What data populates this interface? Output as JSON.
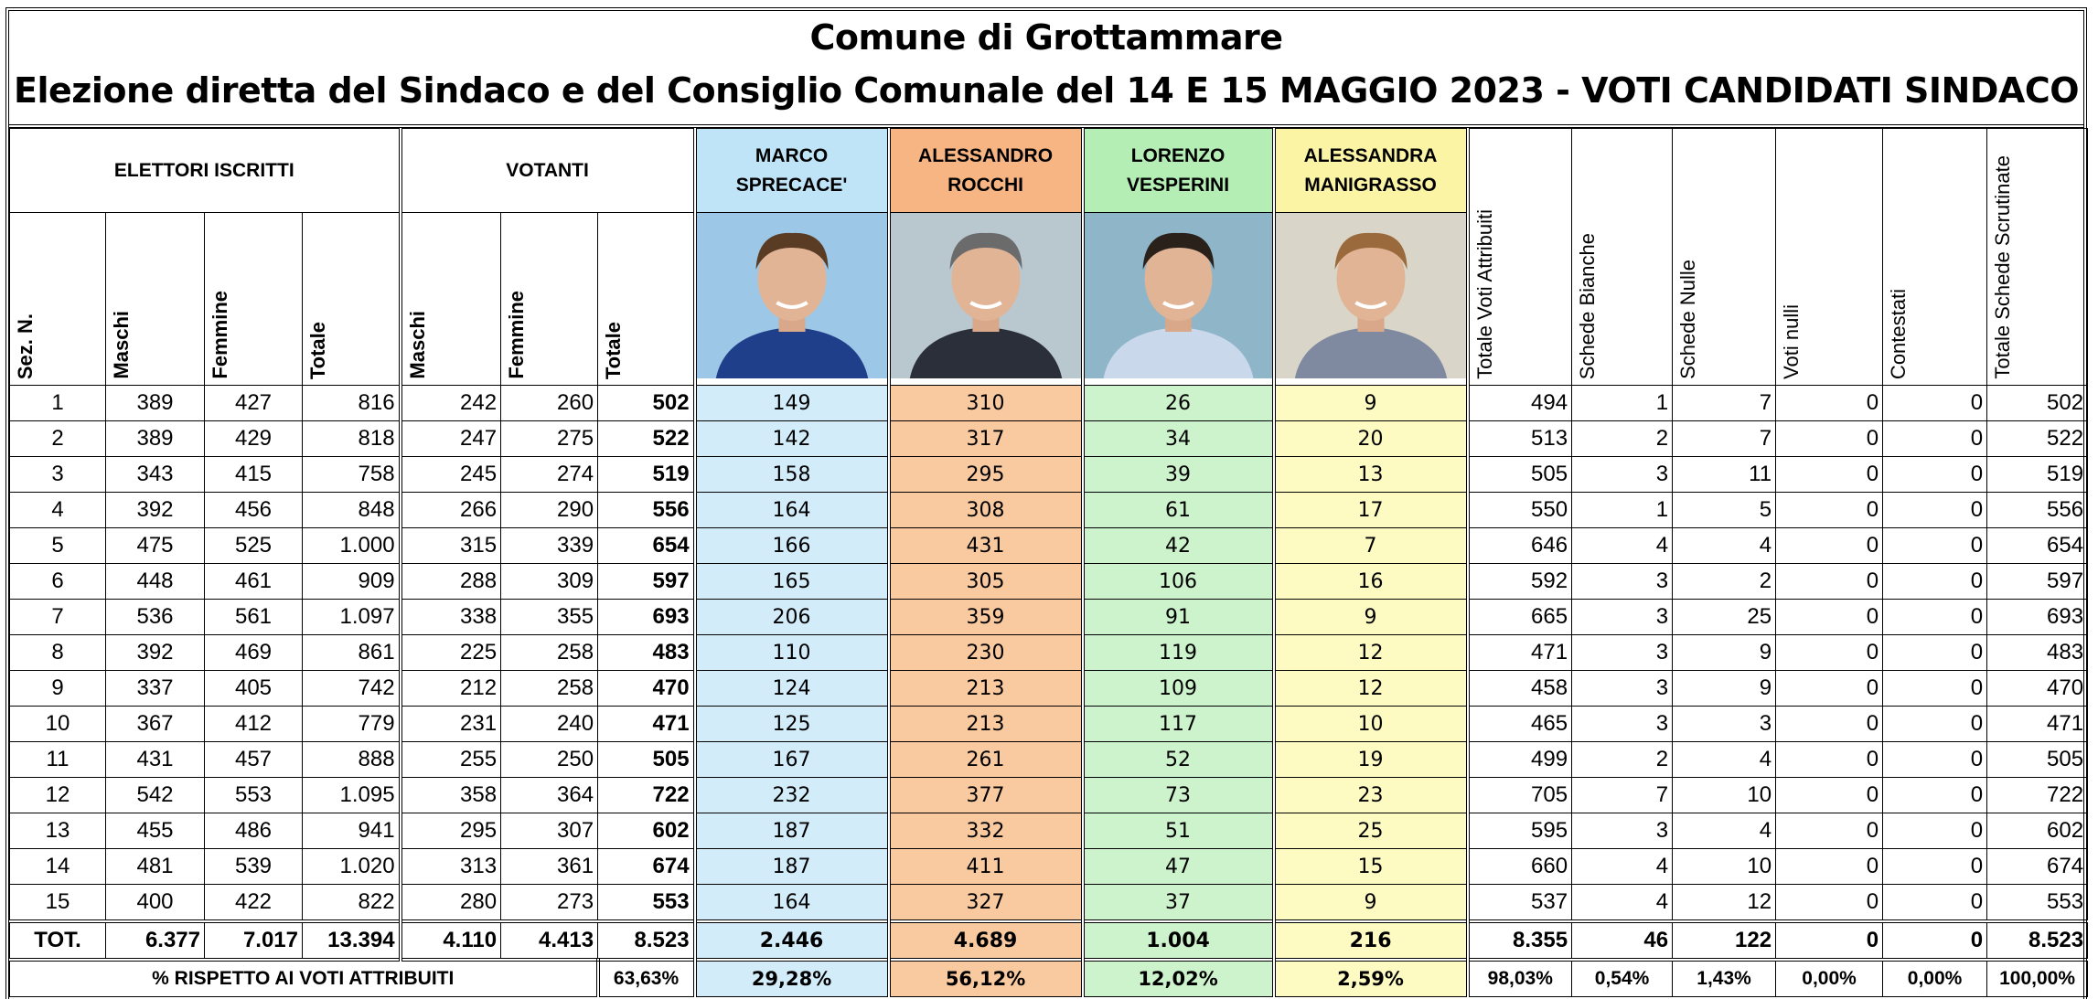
{
  "title": [
    "Comune di Grottammare",
    "Elezione diretta del Sindaco e del Consiglio Comunale del 14 E 15 MAGGIO 2023 - VOTI CANDIDATI SINDACO"
  ],
  "header": {
    "elettori_iscritti": "ELETTORI ISCRITTI",
    "votanti": "VOTANTI",
    "candidates": [
      [
        "MARCO",
        "SPRECACE'"
      ],
      [
        "ALESSANDRO",
        "ROCCHI"
      ],
      [
        "LORENZO",
        "VESPERINI"
      ],
      [
        "ALESSANDRA",
        "MANIGRASSO"
      ]
    ],
    "right_columns": [
      "Totale Voti Attribuiti",
      "Schede Bianche",
      "Schede Nulle",
      "Voti nulli",
      "Contestati",
      "Totale Schede Scrutinate"
    ],
    "sub_columns": [
      "Sez. N.",
      "Maschi",
      "Femmine",
      "Totale",
      "Maschi",
      "Femmine",
      "Totale"
    ]
  },
  "rows": [
    [
      "1",
      "389",
      "427",
      "816",
      "242",
      "260",
      "502",
      "149",
      "310",
      "26",
      "9",
      "494",
      "1",
      "7",
      "0",
      "0",
      "502"
    ],
    [
      "2",
      "389",
      "429",
      "818",
      "247",
      "275",
      "522",
      "142",
      "317",
      "34",
      "20",
      "513",
      "2",
      "7",
      "0",
      "0",
      "522"
    ],
    [
      "3",
      "343",
      "415",
      "758",
      "245",
      "274",
      "519",
      "158",
      "295",
      "39",
      "13",
      "505",
      "3",
      "11",
      "0",
      "0",
      "519"
    ],
    [
      "4",
      "392",
      "456",
      "848",
      "266",
      "290",
      "556",
      "164",
      "308",
      "61",
      "17",
      "550",
      "1",
      "5",
      "0",
      "0",
      "556"
    ],
    [
      "5",
      "475",
      "525",
      "1.000",
      "315",
      "339",
      "654",
      "166",
      "431",
      "42",
      "7",
      "646",
      "4",
      "4",
      "0",
      "0",
      "654"
    ],
    [
      "6",
      "448",
      "461",
      "909",
      "288",
      "309",
      "597",
      "165",
      "305",
      "106",
      "16",
      "592",
      "3",
      "2",
      "0",
      "0",
      "597"
    ],
    [
      "7",
      "536",
      "561",
      "1.097",
      "338",
      "355",
      "693",
      "206",
      "359",
      "91",
      "9",
      "665",
      "3",
      "25",
      "0",
      "0",
      "693"
    ],
    [
      "8",
      "392",
      "469",
      "861",
      "225",
      "258",
      "483",
      "110",
      "230",
      "119",
      "12",
      "471",
      "3",
      "9",
      "0",
      "0",
      "483"
    ],
    [
      "9",
      "337",
      "405",
      "742",
      "212",
      "258",
      "470",
      "124",
      "213",
      "109",
      "12",
      "458",
      "3",
      "9",
      "0",
      "0",
      "470"
    ],
    [
      "10",
      "367",
      "412",
      "779",
      "231",
      "240",
      "471",
      "125",
      "213",
      "117",
      "10",
      "465",
      "3",
      "3",
      "0",
      "0",
      "471"
    ],
    [
      "11",
      "431",
      "457",
      "888",
      "255",
      "250",
      "505",
      "167",
      "261",
      "52",
      "19",
      "499",
      "2",
      "4",
      "0",
      "0",
      "505"
    ],
    [
      "12",
      "542",
      "553",
      "1.095",
      "358",
      "364",
      "722",
      "232",
      "377",
      "73",
      "23",
      "705",
      "7",
      "10",
      "0",
      "0",
      "722"
    ],
    [
      "13",
      "455",
      "486",
      "941",
      "295",
      "307",
      "602",
      "187",
      "332",
      "51",
      "25",
      "595",
      "3",
      "4",
      "0",
      "0",
      "602"
    ],
    [
      "14",
      "481",
      "539",
      "1.020",
      "313",
      "361",
      "674",
      "187",
      "411",
      "47",
      "15",
      "660",
      "4",
      "10",
      "0",
      "0",
      "674"
    ],
    [
      "15",
      "400",
      "422",
      "822",
      "280",
      "273",
      "553",
      "164",
      "327",
      "37",
      "9",
      "537",
      "4",
      "12",
      "0",
      "0",
      "553"
    ]
  ],
  "total": [
    "TOT.",
    "6.377",
    "7.017",
    "13.394",
    "4.110",
    "4.413",
    "8.523",
    "2.446",
    "4.689",
    "1.004",
    "216",
    "8.355",
    "46",
    "122",
    "0",
    "0",
    "8.523"
  ],
  "percent": {
    "label": "% RISPETTO AI VOTI ATTRIBUITI",
    "values": [
      "63,63%",
      "29,28%",
      "56,12%",
      "12,02%",
      "2,59%",
      "98,03%",
      "0,54%",
      "1,43%",
      "0,00%",
      "0,00%",
      "100,00%"
    ]
  }
}
